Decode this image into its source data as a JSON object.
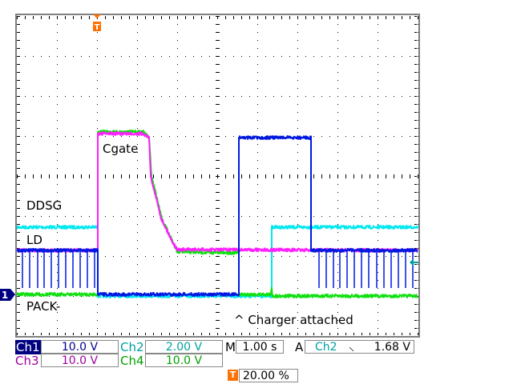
{
  "chart_data": {
    "type": "line",
    "title": "",
    "xlabel": "",
    "ylabel": "",
    "x_unit_note": "s",
    "xlim": [
      -2,
      8
    ],
    "ylim_div": [
      -4,
      4
    ],
    "grid": true,
    "trigger_position_percent": 20,
    "series": [
      {
        "id": "ch1",
        "name": "LD",
        "color": "#0018e0",
        "points": [
          [
            -2,
            -1.86
          ],
          [
            0.02,
            -1.86
          ],
          [
            0.02,
            -2.96
          ],
          [
            3.54,
            -2.96
          ],
          [
            3.54,
            0.96
          ],
          [
            5.34,
            0.96
          ],
          [
            5.34,
            -1.86
          ],
          [
            8,
            -1.86
          ]
        ],
        "spikes": [
          -1.86,
          -1.68,
          -1.48,
          -1.32,
          -1.14,
          -0.96,
          -0.78,
          -0.6,
          -0.42,
          -0.24,
          -0.06,
          5.54,
          5.72,
          5.9,
          6.06,
          6.24,
          6.42,
          6.6,
          6.78,
          6.98,
          7.16,
          7.34,
          7.52,
          7.7,
          7.88
        ],
        "spike_level": -2.8
      },
      {
        "id": "ch2",
        "name": "DDSG",
        "color": "#00e8f0",
        "points": [
          [
            -2,
            -1.28
          ],
          [
            0.02,
            -1.28
          ],
          [
            0.02,
            -3.0
          ],
          [
            4.36,
            -3.0
          ],
          [
            4.36,
            -1.28
          ],
          [
            8,
            -1.28
          ]
        ]
      },
      {
        "id": "ch3",
        "name": "Cgate",
        "color": "#ff20ff",
        "points": [
          [
            -2,
            -1.86
          ],
          [
            0.02,
            -1.86
          ],
          [
            0.02,
            1.06
          ],
          [
            1.16,
            1.06
          ],
          [
            1.3,
            0.95
          ],
          [
            1.34,
            0.0
          ],
          [
            1.6,
            -1.06
          ],
          [
            1.86,
            -1.6
          ],
          [
            2.0,
            -1.84
          ],
          [
            8,
            -1.86
          ]
        ]
      },
      {
        "id": "ch4",
        "name": "PACK-",
        "color": "#10e010",
        "points": [
          [
            -2,
            -2.96
          ],
          [
            0.02,
            -2.96
          ],
          [
            0.02,
            1.1
          ],
          [
            1.16,
            1.1
          ],
          [
            1.3,
            0.95
          ],
          [
            1.36,
            0.0
          ],
          [
            1.62,
            -1.06
          ],
          [
            1.88,
            -1.62
          ],
          [
            2.0,
            -1.9
          ],
          [
            3.54,
            -1.92
          ],
          [
            3.54,
            -2.96
          ],
          [
            4.34,
            -2.96
          ],
          [
            4.36,
            -2.8
          ],
          [
            4.38,
            -3.0
          ],
          [
            8,
            -3.0
          ]
        ]
      }
    ],
    "annotations": [
      {
        "text": "Cgate"
      },
      {
        "text": "DDSG"
      },
      {
        "text": "LD"
      },
      {
        "text": "PACK-"
      },
      {
        "text": "^ Charger attached"
      }
    ]
  },
  "markers": {
    "ch1_ground": "1",
    "trigger": "T",
    "trigger_color": "#ff7000",
    "ch1_color": "#000080",
    "trigger_level_color": "#00a0a0"
  },
  "status": {
    "ch1": {
      "label": "Ch1",
      "value": "10.0 V"
    },
    "ch2": {
      "label": "Ch2",
      "value": "2.00 V"
    },
    "ch3": {
      "label": "Ch3",
      "value": "10.0 V"
    },
    "ch4": {
      "label": "Ch4",
      "value": "10.0 V"
    },
    "timebase": {
      "label": "M",
      "value": "1.00 s"
    },
    "trigger": {
      "label": "A",
      "source": "Ch2",
      "slope": "falling-edge-icon",
      "slope_glyph": "⸜",
      "level": "1.68 V"
    },
    "trigger_pos": {
      "value": "20.00 %"
    }
  }
}
